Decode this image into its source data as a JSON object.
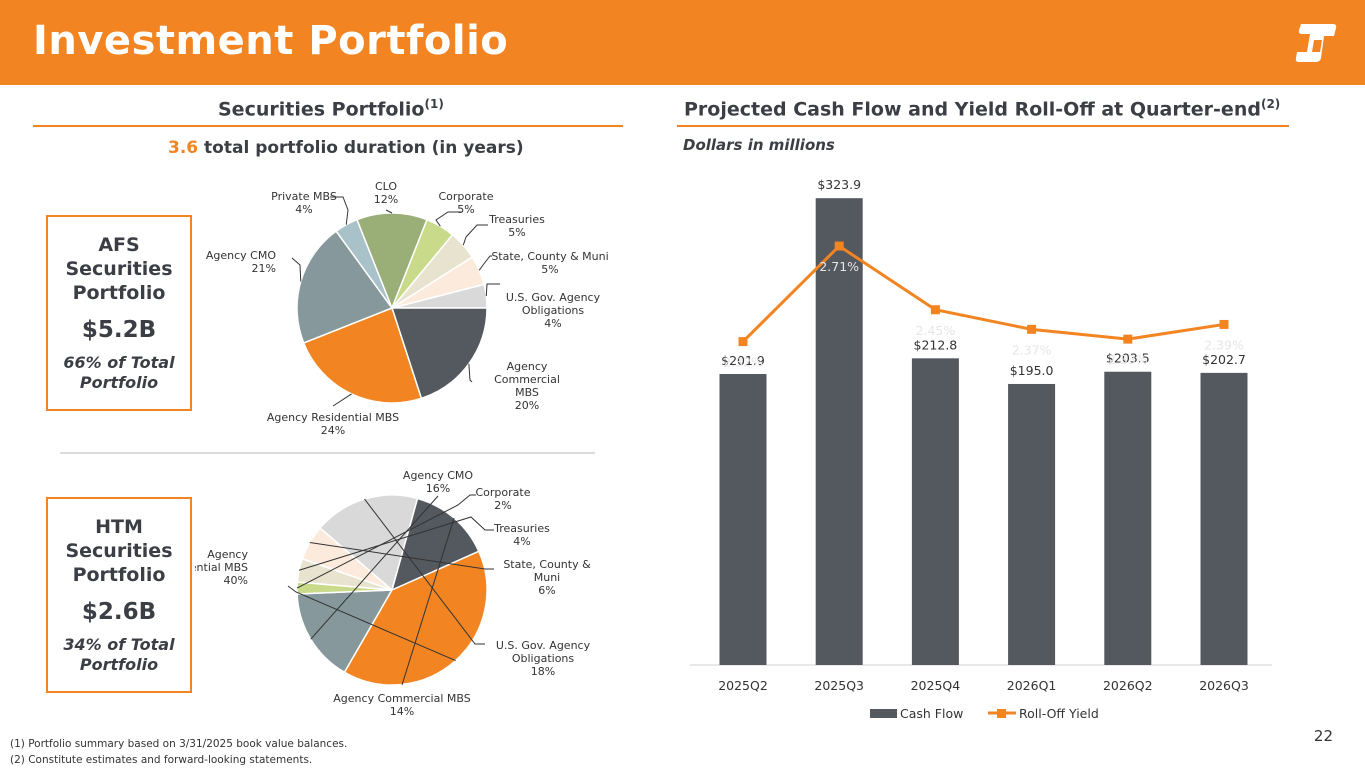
{
  "header": {
    "title": "Investment Portfolio"
  },
  "left": {
    "title": "Securities Portfolio",
    "title_sup": "(1)",
    "duration_value": "3.6",
    "duration_text": " total portfolio duration (in years)"
  },
  "right": {
    "title": "Projected Cash Flow and Yield Roll-Off at Quarter-end",
    "title_sup": "(2)",
    "subtitle": "Dollars in millions"
  },
  "afs": {
    "line1": "AFS",
    "line2": "Securities",
    "line3": "Portfolio",
    "amount": "$5.2B",
    "pct1": "66% of Total",
    "pct2": "Portfolio"
  },
  "htm": {
    "line1": "HTM",
    "line2": "Securities",
    "line3": "Portfolio",
    "amount": "$2.6B",
    "pct1": "34% of Total",
    "pct2": "Portfolio"
  },
  "chart_data": [
    {
      "type": "pie",
      "title": "AFS Securities Portfolio",
      "slices": [
        {
          "label": "U.S. Gov. Agency Obligations",
          "value": 4,
          "label_text": "4%",
          "color": "#D9D9D9"
        },
        {
          "label": "Agency Commercial MBS",
          "value": 20,
          "label_text": "20%",
          "color": "#54585F"
        },
        {
          "label": "Agency Residential MBS",
          "value": 24,
          "label_text": "24%",
          "color": "#F28522"
        },
        {
          "label": "Agency CMO",
          "value": 21,
          "label_text": "21%",
          "color": "#86989B"
        },
        {
          "label": "Private MBS",
          "value": 4,
          "label_text": "4%",
          "color": "#A9C1C9"
        },
        {
          "label": "CLO",
          "value": 12,
          "label_text": "12%",
          "color": "#9AAE78"
        },
        {
          "label": "Corporate",
          "value": 5,
          "label_text": "5%",
          "color": "#C9DB8A"
        },
        {
          "label": "Treasuries",
          "value": 5,
          "label_text": "5%",
          "color": "#E8E3CF"
        },
        {
          "label": "State, County & Muni",
          "value": 5,
          "label_text": "5%",
          "color": "#FCEBDD"
        }
      ]
    },
    {
      "type": "pie",
      "title": "HTM Securities Portfolio",
      "slices": [
        {
          "label": "Agency CMO",
          "value": 16,
          "label_text": "16%",
          "color": "#86989B"
        },
        {
          "label": "Corporate",
          "value": 2,
          "label_text": "2%",
          "color": "#C9DB8A"
        },
        {
          "label": "Treasuries",
          "value": 4,
          "label_text": "4%",
          "color": "#E8E3CF"
        },
        {
          "label": "State, County & Muni",
          "value": 6,
          "label_text": "6%",
          "color": "#FCEBDD"
        },
        {
          "label": "U.S. Gov. Agency Obligations",
          "value": 18,
          "label_text": "18%",
          "color": "#D9D9D9"
        },
        {
          "label": "Agency Commercial MBS",
          "value": 14,
          "label_text": "14%",
          "color": "#54585F"
        },
        {
          "label": "Agency Residential MBS",
          "value": 40,
          "label_text": "40%",
          "color": "#F28522"
        }
      ]
    },
    {
      "type": "bar",
      "title": "Projected Cash Flow and Yield Roll-Off at Quarter-end",
      "categories": [
        "2025Q2",
        "2025Q3",
        "2025Q4",
        "2026Q1",
        "2026Q2",
        "2026Q3"
      ],
      "series": [
        {
          "name": "Cash Flow",
          "kind": "bar",
          "values": [
            201.9,
            323.9,
            212.8,
            195.0,
            203.5,
            202.7
          ],
          "labels": [
            "$201.9",
            "$323.9",
            "$212.8",
            "$195.0",
            "$203.5",
            "$202.7"
          ],
          "color": "#54585F"
        },
        {
          "name": "Roll-Off Yield",
          "kind": "line",
          "values": [
            2.32,
            2.71,
            2.45,
            2.37,
            2.33,
            2.39
          ],
          "labels": [
            "2.32%",
            "2.71%",
            "2.45%",
            "2.37%",
            "2.33%",
            "2.39%"
          ],
          "color": "#F28522"
        }
      ],
      "ylim": [
        0,
        340
      ],
      "y2lim": [
        1.0,
        3.0
      ],
      "legend": "bottom"
    }
  ],
  "footnotes": {
    "note1": "(1)    Portfolio summary based on 3/31/2025 book value balances.",
    "note2": "(2)    Constitute estimates and forward-looking statements."
  },
  "page_number": "22"
}
